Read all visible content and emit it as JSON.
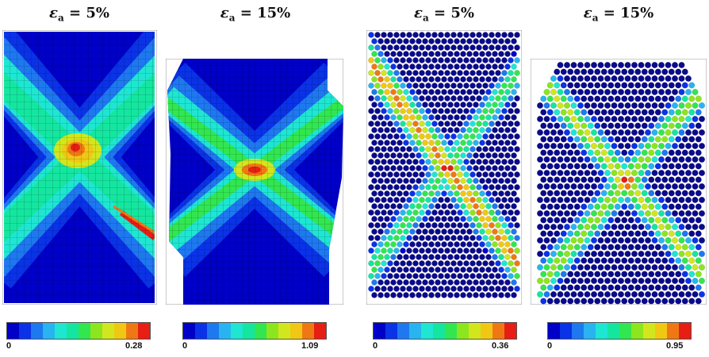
{
  "panels": [
    {
      "title_sym": "ε",
      "title_sub": "a",
      "title_rest": " = 5%",
      "kind": "fem",
      "scale_min": "0",
      "scale_max": "0.28"
    },
    {
      "title_sym": "ε",
      "title_sub": "a",
      "title_rest": " = 15%",
      "kind": "fem",
      "scale_min": "0",
      "scale_max": "1.09"
    },
    {
      "title_sym": "ε",
      "title_sub": "a",
      "title_rest": " = 5%",
      "kind": "dem",
      "scale_min": "0",
      "scale_max": "0.36"
    },
    {
      "title_sym": "ε",
      "title_sub": "a",
      "title_rest": " = 15%",
      "kind": "dem",
      "scale_min": "0",
      "scale_max": "0.95"
    }
  ],
  "colormap": [
    "#0000c8",
    "#0a32e6",
    "#1e78f0",
    "#28b4f0",
    "#1ee6d2",
    "#14e6a0",
    "#32e650",
    "#8ce61e",
    "#d2e61e",
    "#f0c814",
    "#f07814",
    "#e61e14"
  ]
}
